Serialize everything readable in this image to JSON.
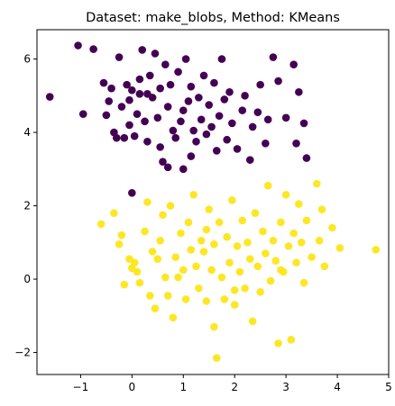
{
  "chart_data": {
    "type": "scatter",
    "title": "Dataset: make_blobs, Method: KMeans",
    "xlabel": "",
    "ylabel": "",
    "xlim": [
      -1.85,
      5.0
    ],
    "ylim": [
      -2.6,
      6.8
    ],
    "xticks": [
      -1,
      0,
      1,
      2,
      3,
      4,
      5
    ],
    "yticks": [
      -2,
      0,
      2,
      4,
      6
    ],
    "grid": false,
    "legend": "none",
    "colors": {
      "cluster_0": "#440154",
      "cluster_1": "#fde725"
    },
    "series": [
      {
        "cluster": 0,
        "color": "#440154",
        "points": [
          [
            -1.6,
            4.97
          ],
          [
            -1.05,
            6.37
          ],
          [
            -0.95,
            4.5
          ],
          [
            -0.75,
            6.27
          ],
          [
            -0.55,
            5.35
          ],
          [
            -0.5,
            4.47
          ],
          [
            -0.45,
            4.85
          ],
          [
            -0.4,
            5.2
          ],
          [
            -0.35,
            4.0
          ],
          [
            -0.3,
            3.85
          ],
          [
            -0.25,
            6.05
          ],
          [
            -0.2,
            4.7
          ],
          [
            -0.15,
            3.85
          ],
          [
            -0.1,
            5.3
          ],
          [
            -0.05,
            4.2
          ],
          [
            -0.05,
            4.88
          ],
          [
            0.0,
            5.15
          ],
          [
            0.05,
            3.9
          ],
          [
            0.1,
            4.5
          ],
          [
            0.15,
            5.45
          ],
          [
            0.15,
            5.05
          ],
          [
            0.2,
            6.25
          ],
          [
            0.25,
            4.3
          ],
          [
            0.3,
            3.75
          ],
          [
            0.3,
            5.05
          ],
          [
            0.35,
            5.55
          ],
          [
            0.4,
            4.95
          ],
          [
            0.45,
            6.15
          ],
          [
            0.5,
            4.4
          ],
          [
            0.55,
            5.2
          ],
          [
            0.55,
            3.6
          ],
          [
            0.6,
            3.2
          ],
          [
            0.65,
            5.85
          ],
          [
            0.7,
            4.7
          ],
          [
            0.75,
            5.3
          ],
          [
            0.8,
            4.05
          ],
          [
            0.85,
            3.85
          ],
          [
            0.9,
            5.65
          ],
          [
            0.95,
            4.3
          ],
          [
            1.0,
            4.6
          ],
          [
            1.05,
            6.0
          ],
          [
            1.1,
            4.85
          ],
          [
            1.15,
            5.25
          ],
          [
            1.2,
            4.05
          ],
          [
            1.25,
            3.75
          ],
          [
            1.3,
            4.95
          ],
          [
            1.35,
            4.35
          ],
          [
            1.4,
            5.55
          ],
          [
            1.45,
            3.95
          ],
          [
            1.5,
            4.75
          ],
          [
            1.55,
            4.15
          ],
          [
            1.6,
            5.35
          ],
          [
            1.65,
            3.5
          ],
          [
            1.7,
            4.45
          ],
          [
            1.75,
            6.0
          ],
          [
            1.8,
            4.9
          ],
          [
            1.85,
            3.8
          ],
          [
            1.9,
            5.1
          ],
          [
            1.95,
            4.25
          ],
          [
            2.05,
            3.55
          ],
          [
            2.15,
            4.6
          ],
          [
            2.2,
            5.0
          ],
          [
            2.3,
            3.25
          ],
          [
            2.35,
            4.15
          ],
          [
            2.45,
            4.55
          ],
          [
            2.5,
            5.3
          ],
          [
            2.6,
            3.7
          ],
          [
            2.65,
            4.35
          ],
          [
            2.75,
            6.05
          ],
          [
            2.85,
            5.4
          ],
          [
            3.0,
            4.4
          ],
          [
            3.15,
            5.85
          ],
          [
            3.25,
            5.1
          ],
          [
            3.35,
            4.25
          ],
          [
            3.4,
            3.3
          ],
          [
            3.2,
            3.7
          ],
          [
            1.0,
            3.0
          ],
          [
            1.15,
            3.35
          ],
          [
            0.7,
            3.05
          ],
          [
            0.0,
            2.35
          ]
        ]
      },
      {
        "cluster": 1,
        "color": "#fde725",
        "points": [
          [
            -0.6,
            1.5
          ],
          [
            -0.35,
            1.8
          ],
          [
            -0.25,
            0.95
          ],
          [
            -0.2,
            1.2
          ],
          [
            -0.15,
            -0.15
          ],
          [
            -0.05,
            0.55
          ],
          [
            0.0,
            0.3
          ],
          [
            0.05,
            0.45
          ],
          [
            0.1,
            0.2
          ],
          [
            0.15,
            -0.1
          ],
          [
            0.25,
            1.3
          ],
          [
            0.3,
            2.1
          ],
          [
            0.35,
            -0.45
          ],
          [
            0.4,
            0.75
          ],
          [
            0.45,
            -0.8
          ],
          [
            0.5,
            0.55
          ],
          [
            0.6,
            1.75
          ],
          [
            0.65,
            0.05
          ],
          [
            0.7,
            -0.45
          ],
          [
            0.75,
            2.0
          ],
          [
            0.8,
            -1.05
          ],
          [
            0.85,
            0.6
          ],
          [
            0.9,
            0.05
          ],
          [
            0.95,
            1.25
          ],
          [
            1.0,
            0.25
          ],
          [
            1.05,
            -0.55
          ],
          [
            1.1,
            1.55
          ],
          [
            1.15,
            0.8
          ],
          [
            1.2,
            2.3
          ],
          [
            1.25,
            0.35
          ],
          [
            1.3,
            -0.25
          ],
          [
            1.35,
            1.05
          ],
          [
            1.4,
            0.75
          ],
          [
            1.45,
            -0.6
          ],
          [
            1.5,
            1.9
          ],
          [
            1.55,
            0.25
          ],
          [
            1.6,
            -1.3
          ],
          [
            1.6,
            0.95
          ],
          [
            1.65,
            -2.15
          ],
          [
            1.7,
            1.55
          ],
          [
            1.75,
            0.05
          ],
          [
            1.8,
            -0.55
          ],
          [
            1.85,
            1.15
          ],
          [
            1.9,
            0.45
          ],
          [
            1.95,
            2.15
          ],
          [
            2.0,
            -0.7
          ],
          [
            2.05,
            0.9
          ],
          [
            2.1,
            0.2
          ],
          [
            2.15,
            1.6
          ],
          [
            2.2,
            -0.25
          ],
          [
            2.25,
            1.0
          ],
          [
            2.3,
            0.55
          ],
          [
            2.35,
            -1.15
          ],
          [
            2.4,
            1.8
          ],
          [
            2.45,
            0.35
          ],
          [
            2.5,
            -0.35
          ],
          [
            2.55,
            1.3
          ],
          [
            2.6,
            0.7
          ],
          [
            2.65,
            2.55
          ],
          [
            2.7,
            -0.05
          ],
          [
            2.75,
            1.05
          ],
          [
            2.8,
            0.5
          ],
          [
            2.85,
            -1.75
          ],
          [
            2.9,
            1.55
          ],
          [
            2.95,
            0.2
          ],
          [
            3.0,
            2.3
          ],
          [
            3.05,
            0.9
          ],
          [
            3.1,
            -1.65
          ],
          [
            3.15,
            1.25
          ],
          [
            3.2,
            0.45
          ],
          [
            3.25,
            2.05
          ],
          [
            3.3,
            1.0
          ],
          [
            3.35,
            -0.1
          ],
          [
            3.4,
            1.6
          ],
          [
            3.5,
            0.6
          ],
          [
            3.6,
            2.6
          ],
          [
            3.65,
            1.05
          ],
          [
            3.7,
            1.9
          ],
          [
            3.75,
            0.35
          ],
          [
            3.9,
            1.4
          ],
          [
            4.05,
            0.85
          ],
          [
            4.75,
            0.8
          ],
          [
            2.0,
            -0.3
          ],
          [
            1.45,
            1.35
          ],
          [
            0.55,
            1.05
          ],
          [
            2.9,
            0.25
          ]
        ]
      }
    ]
  }
}
